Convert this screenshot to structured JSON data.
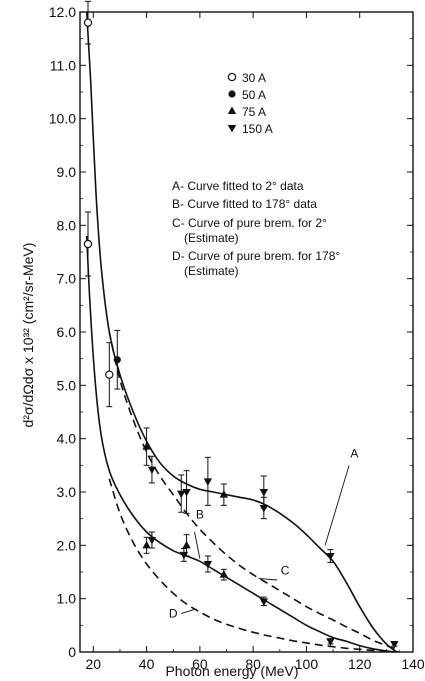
{
  "chart_data": {
    "type": "scatter",
    "title": "",
    "xlabel": "Photon energy (MeV)",
    "ylabel": "d²σ/dΩdσ x 10³² (cm²/sr-MeV)",
    "xlim": [
      15,
      140
    ],
    "ylim": [
      0,
      12.0
    ],
    "x_ticks": [
      20,
      40,
      60,
      80,
      100,
      120,
      140
    ],
    "y_ticks": [
      0,
      1.0,
      2.0,
      3.0,
      4.0,
      5.0,
      6.0,
      7.0,
      8.0,
      9.0,
      10.0,
      11.0,
      12.0
    ],
    "y_tick_labels": [
      "0",
      "1.0",
      "2.0",
      "3.0",
      "4.0",
      "5.0",
      "6.0",
      "7.0",
      "8.0",
      "9.0",
      "10.0",
      "11.0",
      "12.0"
    ],
    "grid": false,
    "legend_position": "top-right",
    "series": [
      {
        "name": "30 A",
        "marker": "open-circle",
        "points": [
          {
            "x": 18,
            "y": 11.8,
            "err": 0.4
          },
          {
            "x": 18,
            "y": 7.65,
            "err": 0.6
          },
          {
            "x": 26,
            "y": 5.2,
            "err": 0.6
          }
        ]
      },
      {
        "name": "50 A",
        "marker": "filled-circle",
        "points": [
          {
            "x": 29,
            "y": 5.48,
            "err": 0.55
          }
        ]
      },
      {
        "name": "75 A",
        "marker": "triangle-up",
        "points": [
          {
            "x": 40,
            "y": 3.85,
            "err": 0.35
          },
          {
            "x": 40,
            "y": 2.0,
            "err": 0.15
          },
          {
            "x": 55,
            "y": 2.0,
            "err": 0.2
          },
          {
            "x": 69,
            "y": 2.95,
            "err": 0.2
          },
          {
            "x": 69,
            "y": 1.45,
            "err": 0.1
          }
        ]
      },
      {
        "name": "150 A",
        "marker": "triangle-down",
        "points": [
          {
            "x": 42,
            "y": 3.42,
            "err": 0.25
          },
          {
            "x": 42,
            "y": 2.1,
            "err": 0.15
          },
          {
            "x": 53,
            "y": 2.97,
            "err": 0.35
          },
          {
            "x": 54,
            "y": 1.82,
            "err": 0.12
          },
          {
            "x": 55,
            "y": 3.0,
            "err": 0.4
          },
          {
            "x": 63,
            "y": 3.2,
            "err": 0.45
          },
          {
            "x": 63,
            "y": 1.65,
            "err": 0.15
          },
          {
            "x": 84,
            "y": 3.0,
            "err": 0.3
          },
          {
            "x": 84,
            "y": 2.7,
            "err": 0.2
          },
          {
            "x": 84,
            "y": 0.95,
            "err": 0.08
          },
          {
            "x": 109,
            "y": 1.8,
            "err": 0.12
          },
          {
            "x": 109,
            "y": 0.2,
            "err": 0.05
          },
          {
            "x": 133,
            "y": 0.15,
            "err": 0.04
          }
        ]
      }
    ],
    "curves": [
      {
        "name": "A",
        "style": "solid",
        "label_at": {
          "x": 118,
          "y": 3.65
        },
        "points": [
          [
            17.5,
            12.0
          ],
          [
            19,
            10.7
          ],
          [
            21,
            8.6
          ],
          [
            23,
            7.2
          ],
          [
            26,
            6.0
          ],
          [
            30,
            5.2
          ],
          [
            35,
            4.5
          ],
          [
            40,
            3.95
          ],
          [
            45,
            3.55
          ],
          [
            50,
            3.3
          ],
          [
            55,
            3.15
          ],
          [
            60,
            3.05
          ],
          [
            65,
            3.0
          ],
          [
            70,
            2.95
          ],
          [
            75,
            2.9
          ],
          [
            80,
            2.85
          ],
          [
            85,
            2.75
          ],
          [
            90,
            2.6
          ],
          [
            95,
            2.42
          ],
          [
            100,
            2.2
          ],
          [
            105,
            1.95
          ],
          [
            110,
            1.7
          ],
          [
            115,
            1.3
          ],
          [
            120,
            0.85
          ],
          [
            125,
            0.45
          ],
          [
            130,
            0.15
          ],
          [
            134,
            0.0
          ]
        ]
      },
      {
        "name": "B",
        "style": "solid",
        "label_at": {
          "x": 60,
          "y": 2.5
        },
        "points": [
          [
            17.5,
            7.8
          ],
          [
            19,
            6.3
          ],
          [
            21,
            4.9
          ],
          [
            23,
            4.05
          ],
          [
            26,
            3.4
          ],
          [
            30,
            2.95
          ],
          [
            35,
            2.55
          ],
          [
            40,
            2.25
          ],
          [
            45,
            2.05
          ],
          [
            50,
            1.9
          ],
          [
            55,
            1.8
          ],
          [
            60,
            1.7
          ],
          [
            65,
            1.55
          ],
          [
            70,
            1.4
          ],
          [
            75,
            1.25
          ],
          [
            80,
            1.1
          ],
          [
            85,
            0.95
          ],
          [
            90,
            0.8
          ],
          [
            95,
            0.65
          ],
          [
            100,
            0.5
          ],
          [
            105,
            0.38
          ],
          [
            110,
            0.27
          ],
          [
            115,
            0.2
          ],
          [
            120,
            0.12
          ],
          [
            125,
            0.06
          ],
          [
            130,
            0.02
          ],
          [
            133,
            0.0
          ]
        ]
      },
      {
        "name": "C",
        "style": "dashed",
        "label_at": {
          "x": 92,
          "y": 1.45
        },
        "points": [
          [
            26,
            6.0
          ],
          [
            30,
            5.1
          ],
          [
            35,
            4.35
          ],
          [
            40,
            3.75
          ],
          [
            45,
            3.3
          ],
          [
            50,
            2.95
          ],
          [
            55,
            2.6
          ],
          [
            60,
            2.3
          ],
          [
            65,
            2.05
          ],
          [
            70,
            1.82
          ],
          [
            75,
            1.62
          ],
          [
            80,
            1.45
          ],
          [
            85,
            1.3
          ],
          [
            90,
            1.15
          ],
          [
            95,
            1.0
          ],
          [
            100,
            0.85
          ],
          [
            105,
            0.72
          ],
          [
            110,
            0.6
          ],
          [
            115,
            0.47
          ],
          [
            120,
            0.35
          ],
          [
            125,
            0.22
          ],
          [
            130,
            0.12
          ],
          [
            135,
            0.03
          ]
        ]
      },
      {
        "name": "D",
        "style": "dashed",
        "label_at": {
          "x": 50,
          "y": 0.65
        },
        "points": [
          [
            26,
            3.25
          ],
          [
            30,
            2.6
          ],
          [
            35,
            2.05
          ],
          [
            40,
            1.65
          ],
          [
            45,
            1.35
          ],
          [
            50,
            1.1
          ],
          [
            55,
            0.9
          ],
          [
            60,
            0.75
          ],
          [
            65,
            0.62
          ],
          [
            70,
            0.52
          ],
          [
            75,
            0.44
          ],
          [
            80,
            0.37
          ],
          [
            85,
            0.31
          ],
          [
            90,
            0.26
          ],
          [
            95,
            0.21
          ],
          [
            100,
            0.17
          ],
          [
            105,
            0.13
          ],
          [
            110,
            0.1
          ],
          [
            115,
            0.07
          ],
          [
            120,
            0.05
          ],
          [
            125,
            0.03
          ],
          [
            130,
            0.015
          ],
          [
            135,
            0.0
          ]
        ]
      }
    ],
    "legend": {
      "markers": [
        {
          "label": "30 A",
          "marker": "open-circle"
        },
        {
          "label": "50 A",
          "marker": "filled-circle"
        },
        {
          "label": "75 A",
          "marker": "triangle-up"
        },
        {
          "label": "150 A",
          "marker": "triangle-down"
        }
      ],
      "notes": [
        "A- Curve fitted to 2° data",
        "B- Curve fitted to 178° data",
        "C- Curve of pure brem. for 2°",
        "(Estimate)",
        "D- Curve of pure brem. for 178°",
        "(Estimate)"
      ]
    }
  }
}
